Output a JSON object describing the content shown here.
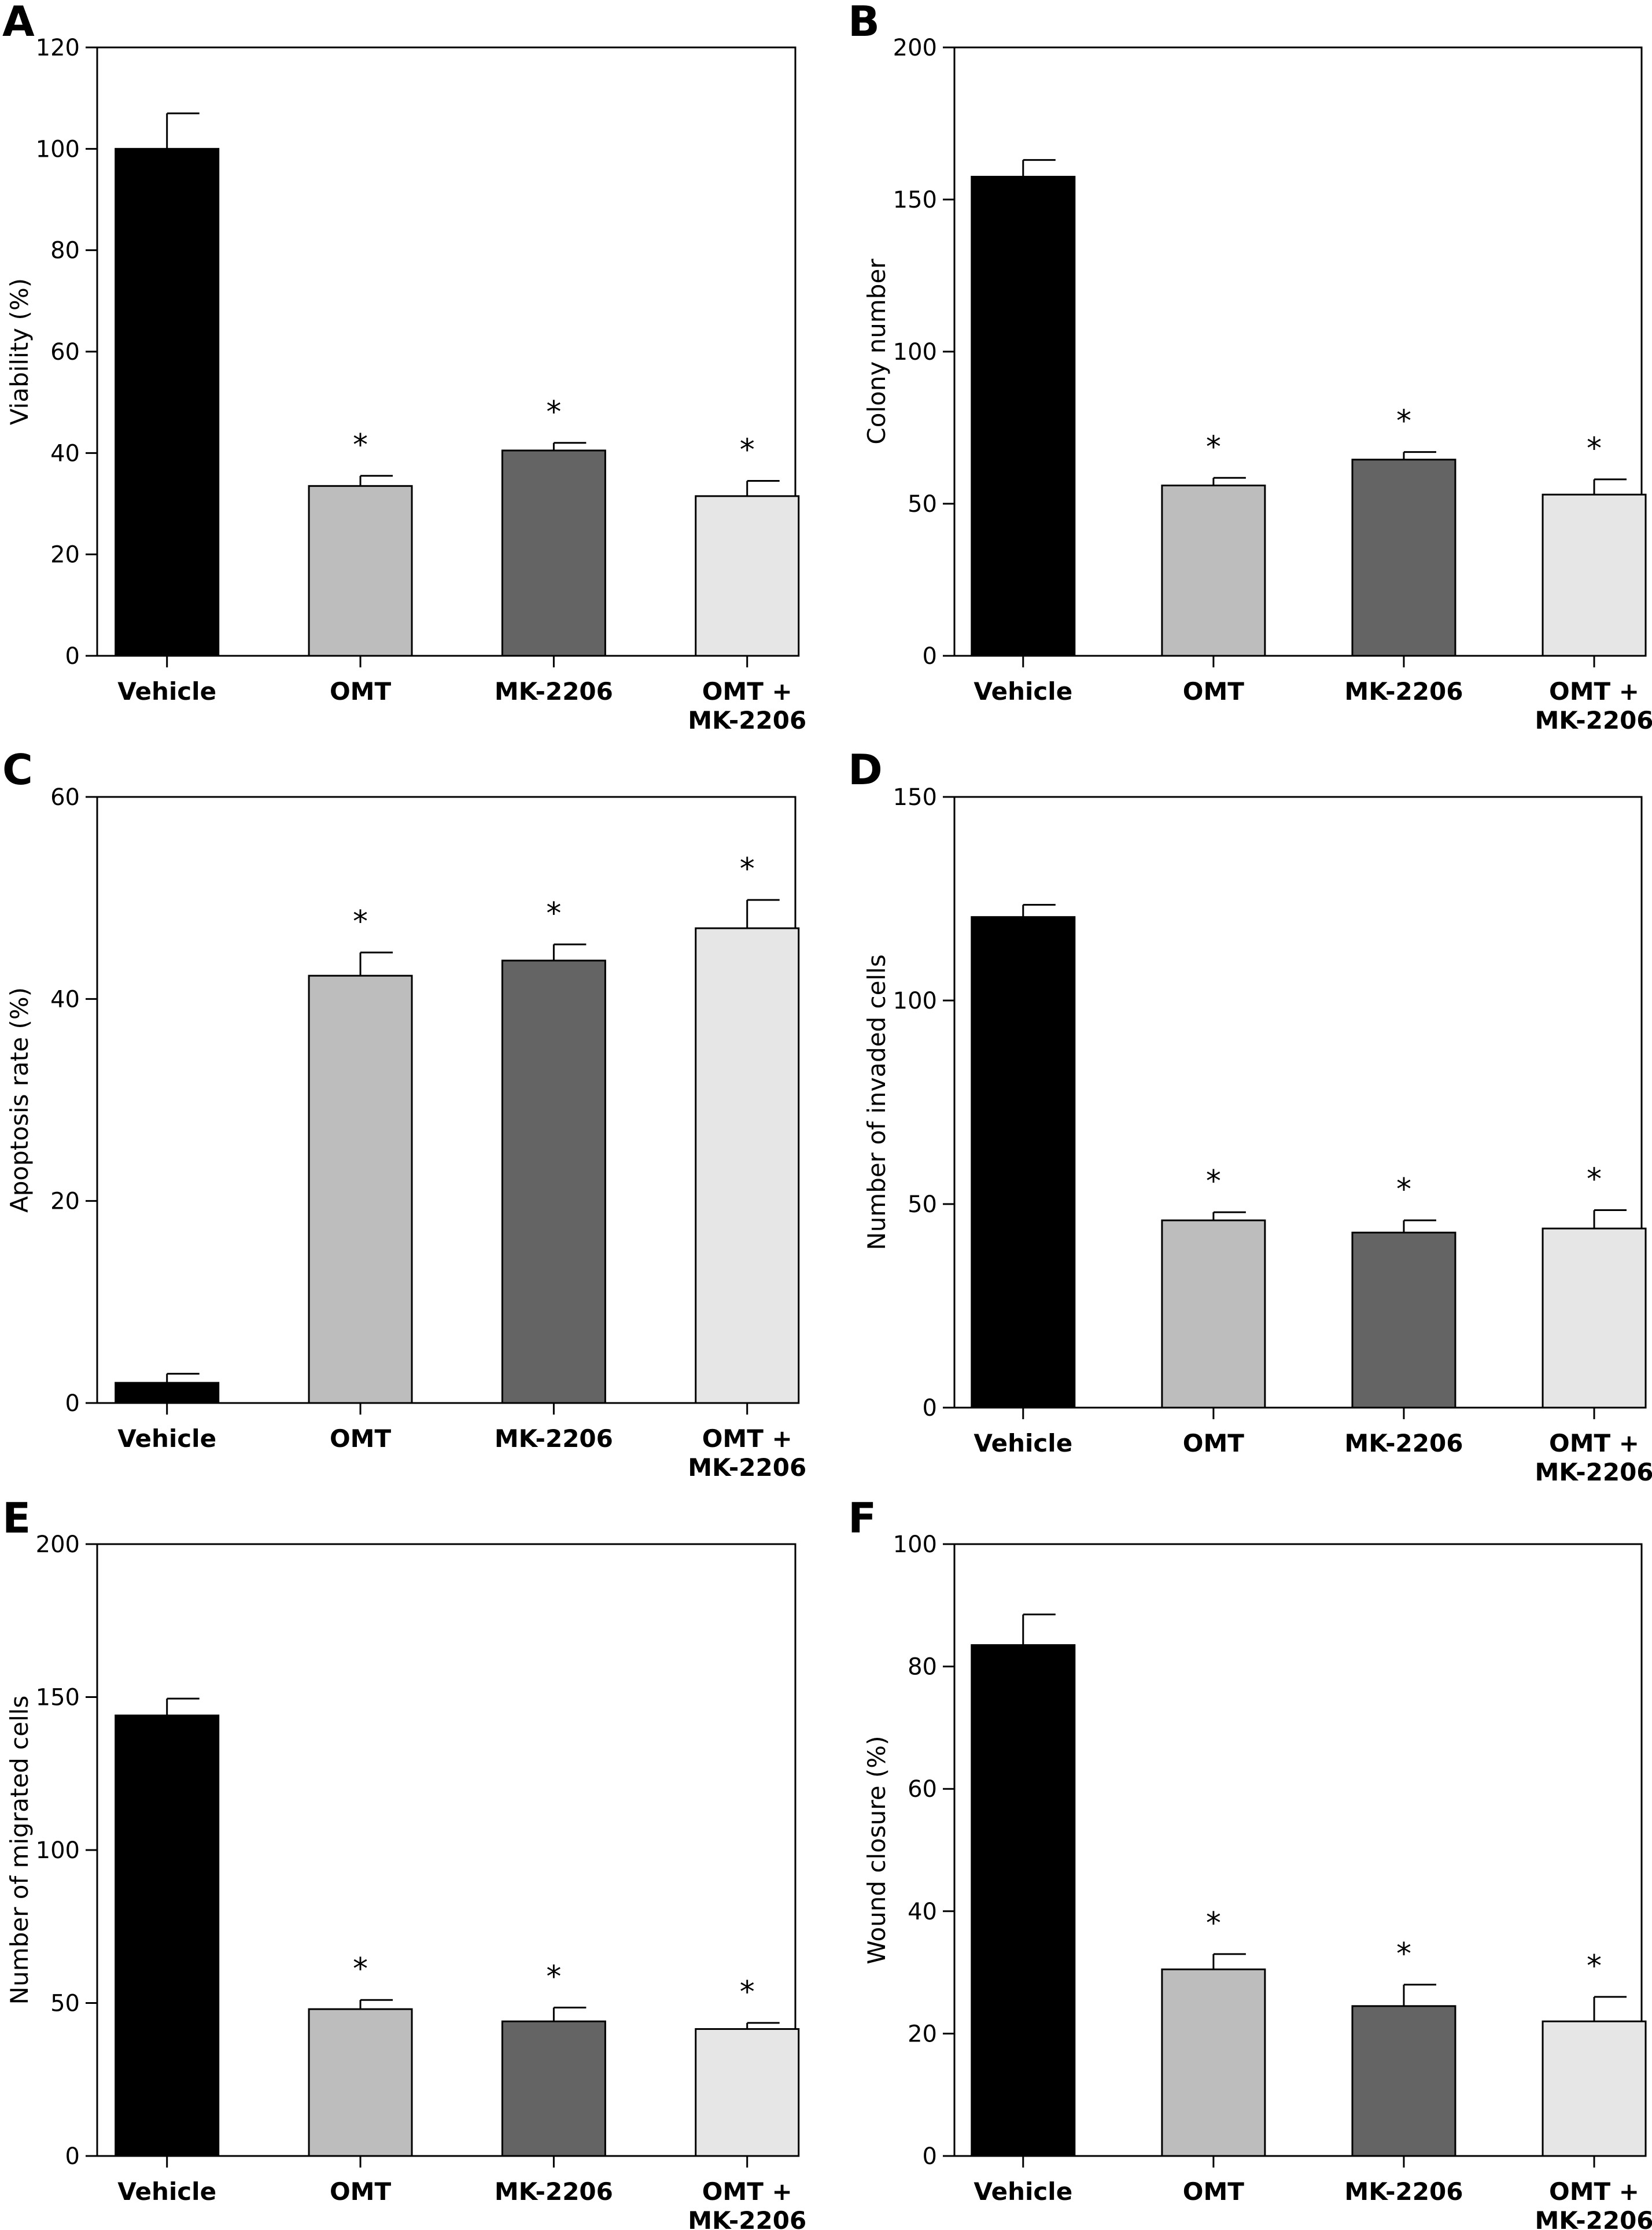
{
  "colors": {
    "Vehicle": "#000000",
    "OMT": "#bdbdbd",
    "MK-2206": "#646464",
    "OMT + MK-2206": "#e6e6e6",
    "axis": "#000000"
  },
  "chart_data": [
    {
      "panel": "A",
      "type": "bar",
      "categories": [
        [
          "Vehicle"
        ],
        [
          "OMT"
        ],
        [
          "MK-2206"
        ],
        [
          "OMT +",
          "MK-2206"
        ]
      ],
      "values": [
        100,
        33.5,
        40.5,
        31.5
      ],
      "errors": [
        7,
        2,
        1.5,
        3
      ],
      "significant": [
        false,
        true,
        true,
        true
      ],
      "ylabel": "Viability (%)",
      "ylim": [
        0,
        120
      ],
      "yticks": [
        0,
        20,
        40,
        60,
        80,
        100,
        120
      ]
    },
    {
      "panel": "B",
      "type": "bar",
      "categories": [
        [
          "Vehicle"
        ],
        [
          "OMT"
        ],
        [
          "MK-2206"
        ],
        [
          "OMT +",
          "MK-2206"
        ]
      ],
      "values": [
        157.5,
        56,
        64.5,
        53
      ],
      "errors": [
        5.5,
        2.5,
        2.5,
        5
      ],
      "significant": [
        false,
        true,
        true,
        true
      ],
      "ylabel": "Colony number",
      "ylim": [
        0,
        200
      ],
      "yticks": [
        0,
        50,
        100,
        150,
        200
      ]
    },
    {
      "panel": "C",
      "type": "bar",
      "categories": [
        [
          "Vehicle"
        ],
        [
          "OMT"
        ],
        [
          "MK-2206"
        ],
        [
          "OMT +",
          "MK-2206"
        ]
      ],
      "values": [
        2,
        42.3,
        43.8,
        47
      ],
      "errors": [
        0.9,
        2.3,
        1.6,
        2.8
      ],
      "significant": [
        false,
        true,
        true,
        true
      ],
      "ylabel": "Apoptosis rate (%)",
      "ylim": [
        0,
        60
      ],
      "yticks": [
        0,
        20,
        40,
        60
      ]
    },
    {
      "panel": "D",
      "type": "bar",
      "categories": [
        [
          "Vehicle"
        ],
        [
          "OMT"
        ],
        [
          "MK-2206"
        ],
        [
          "OMT +",
          "MK-2206"
        ]
      ],
      "values": [
        120.5,
        46,
        43,
        44
      ],
      "errors": [
        3,
        2,
        3,
        4.5
      ],
      "significant": [
        false,
        true,
        true,
        true
      ],
      "ylabel": "Number of invaded cells",
      "ylim": [
        0,
        150
      ],
      "yticks": [
        0,
        50,
        100,
        150
      ]
    },
    {
      "panel": "E",
      "type": "bar",
      "categories": [
        [
          "Vehicle"
        ],
        [
          "OMT"
        ],
        [
          "MK-2206"
        ],
        [
          "OMT +",
          "MK-2206"
        ]
      ],
      "values": [
        144,
        48,
        44,
        41.5
      ],
      "errors": [
        5.5,
        3,
        4.5,
        2
      ],
      "significant": [
        false,
        true,
        true,
        true
      ],
      "ylabel": "Number of migrated cells",
      "ylim": [
        0,
        200
      ],
      "yticks": [
        0,
        50,
        100,
        150,
        200
      ]
    },
    {
      "panel": "F",
      "type": "bar",
      "categories": [
        [
          "Vehicle"
        ],
        [
          "OMT"
        ],
        [
          "MK-2206"
        ],
        [
          "OMT +",
          "MK-2206"
        ]
      ],
      "values": [
        83.5,
        30.5,
        24.5,
        22
      ],
      "errors": [
        5,
        2.5,
        3.5,
        4
      ],
      "significant": [
        false,
        true,
        true,
        true
      ],
      "ylabel": "Wound closure (%)",
      "ylim": [
        0,
        100
      ],
      "yticks": [
        0,
        20,
        40,
        60,
        80,
        100
      ]
    }
  ],
  "significance_marker": "*"
}
